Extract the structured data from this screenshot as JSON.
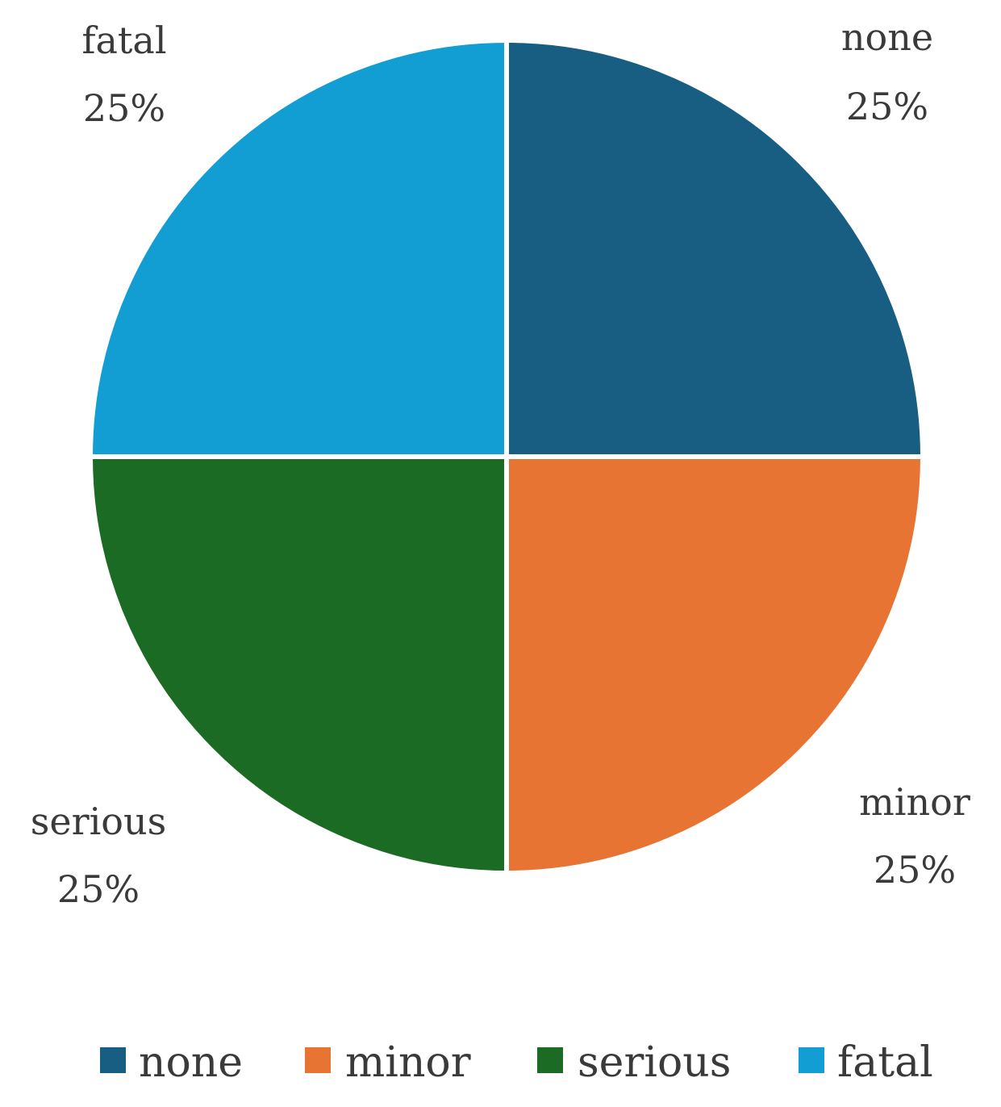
{
  "chart_data": {
    "type": "pie",
    "categories": [
      "none",
      "minor",
      "serious",
      "fatal"
    ],
    "values": [
      25,
      25,
      25,
      25
    ],
    "data_labels": [
      "25%",
      "25%",
      "25%",
      "25%"
    ],
    "colors": [
      "#185e82",
      "#e87433",
      "#1b6b25",
      "#129ed3"
    ],
    "legend": {
      "placement": "bottom",
      "entries": [
        "none",
        "minor",
        "serious",
        "fatal"
      ]
    },
    "title": ""
  }
}
